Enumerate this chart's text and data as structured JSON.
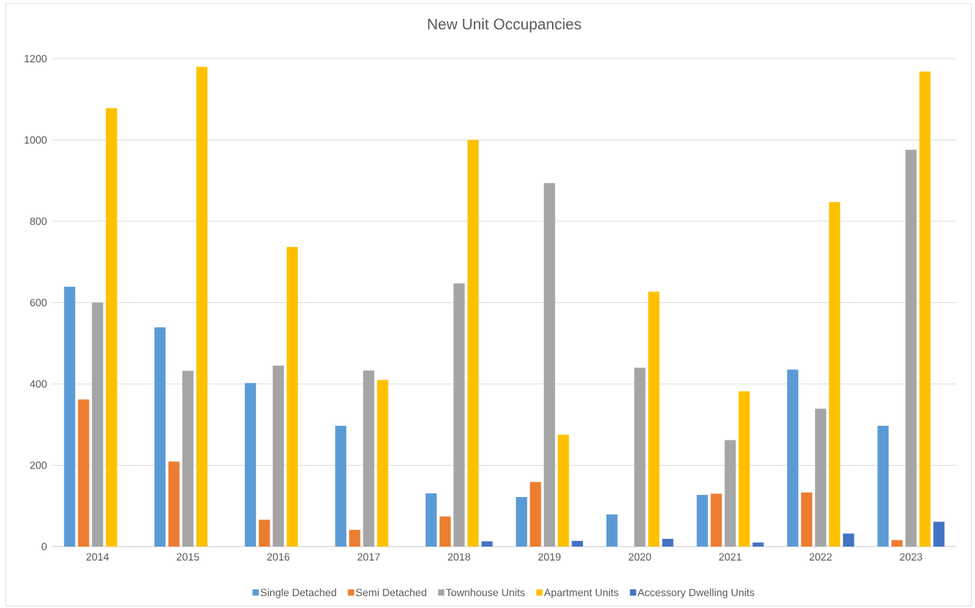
{
  "chart_data": {
    "type": "bar",
    "title": "New Unit Occupancies",
    "categories": [
      "2014",
      "2015",
      "2016",
      "2017",
      "2018",
      "2019",
      "2020",
      "2021",
      "2022",
      "2023"
    ],
    "series": [
      {
        "name": "Single Detached",
        "color": "#5b9bd5",
        "values": [
          639,
          539,
          402,
          297,
          131,
          122,
          79,
          127,
          435,
          297
        ]
      },
      {
        "name": "Semi Detached",
        "color": "#ed7d31",
        "values": [
          362,
          209,
          66,
          41,
          74,
          159,
          null,
          130,
          133,
          16
        ]
      },
      {
        "name": "Townhouse Units",
        "color": "#a5a5a5",
        "values": [
          600,
          432,
          445,
          433,
          647,
          894,
          440,
          262,
          339,
          976
        ]
      },
      {
        "name": "Apartment Units",
        "color": "#ffc000",
        "values": [
          1078,
          1180,
          737,
          410,
          1000,
          275,
          627,
          382,
          847,
          1168
        ]
      },
      {
        "name": "Accessory Dwelling Units",
        "color": "#4472c4",
        "values": [
          null,
          null,
          null,
          null,
          13,
          14,
          19,
          10,
          32,
          61
        ]
      }
    ],
    "ylim": [
      0,
      1200
    ],
    "yticks": [
      0,
      200,
      400,
      600,
      800,
      1000,
      1200
    ],
    "grid": "y",
    "legend": "bottom"
  }
}
